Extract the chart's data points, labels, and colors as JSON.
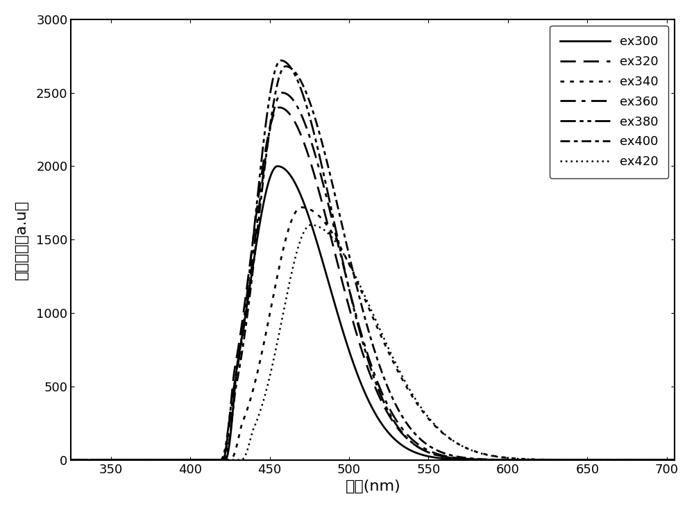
{
  "xlabel": "波长(nm)",
  "ylabel": "药光强度（a.u）",
  "xlim": [
    325,
    705
  ],
  "ylim": [
    0,
    3000
  ],
  "xticks": [
    350,
    400,
    450,
    500,
    550,
    600,
    650,
    700
  ],
  "yticks": [
    0,
    500,
    1000,
    1500,
    2000,
    2500,
    3000
  ],
  "curves": [
    {
      "label": "ex300",
      "peak_x": 455,
      "peak_y": 2000,
      "start_x": 422,
      "sigma_l": 17,
      "sigma_r": 32,
      "ls": "solid",
      "lw": 2.0
    },
    {
      "label": "ex320",
      "peak_x": 456,
      "peak_y": 2400,
      "start_x": 420,
      "sigma_l": 17,
      "sigma_r": 34,
      "ls": "dashed",
      "lw": 2.0
    },
    {
      "label": "ex340",
      "peak_x": 470,
      "peak_y": 1720,
      "start_x": 425,
      "sigma_l": 19,
      "sigma_r": 42,
      "ls": "dotted",
      "lw": 2.0
    },
    {
      "label": "ex360",
      "peak_x": 458,
      "peak_y": 2500,
      "start_x": 420,
      "sigma_l": 17,
      "sigma_r": 34,
      "ls": "dashdot",
      "lw": 2.0
    },
    {
      "label": "ex380",
      "peak_x": 457,
      "peak_y": 2720,
      "start_x": 419,
      "sigma_l": 16,
      "sigma_r": 33,
      "ls": "dashdotdot",
      "lw": 2.0
    },
    {
      "label": "ex400",
      "peak_x": 460,
      "peak_y": 2680,
      "start_x": 421,
      "sigma_l": 17,
      "sigma_r": 35,
      "ls": "densedash",
      "lw": 2.0
    },
    {
      "label": "ex420",
      "peak_x": 476,
      "peak_y": 1600,
      "start_x": 432,
      "sigma_l": 18,
      "sigma_r": 40,
      "ls": "densedot",
      "lw": 1.8
    }
  ]
}
